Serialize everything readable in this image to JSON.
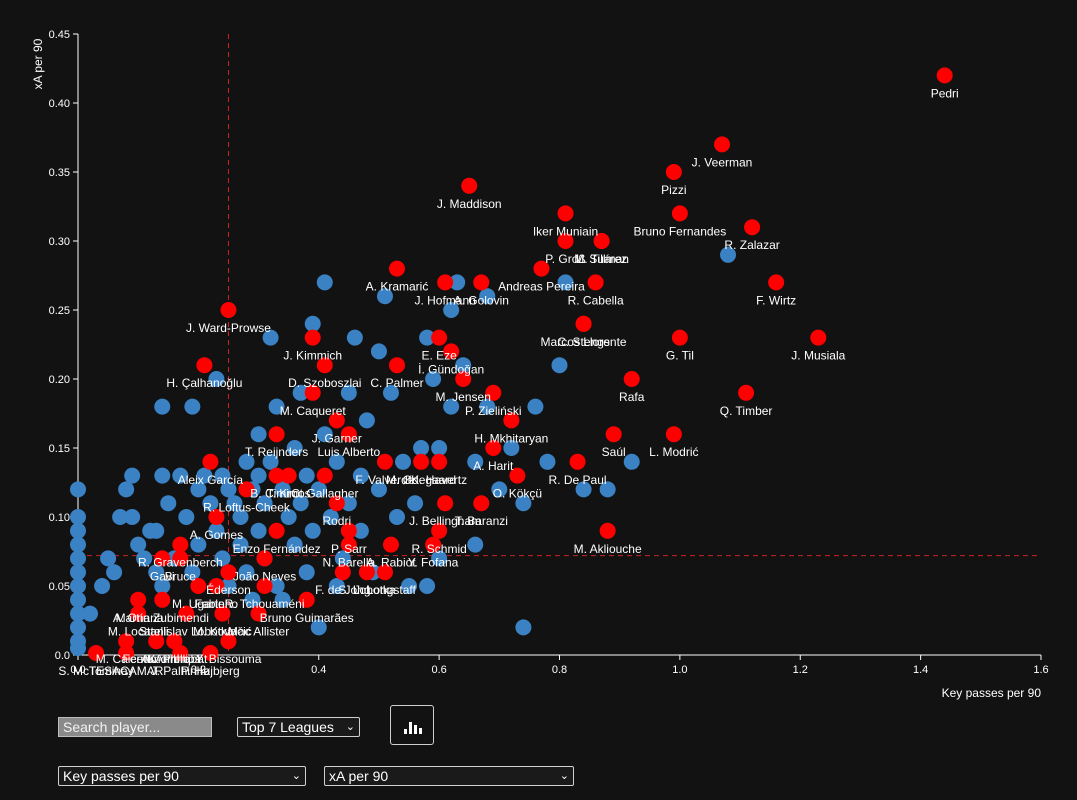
{
  "controls": {
    "search_placeholder": "Search player...",
    "league_selected": "Top 7 Leagues",
    "x_metric_selected": "Key passes per 90",
    "y_metric_selected": "xA per 90",
    "chart_button_icon": "bar-chart-icon"
  },
  "colors": {
    "highlight": "#ff0000",
    "base": "#3a82c4",
    "refline": "#cc2222",
    "background": "#121212"
  },
  "chart_data": {
    "type": "scatter",
    "xlabel": "Key passes per 90",
    "ylabel": "xA per 90",
    "xlim": [
      0,
      1.6
    ],
    "ylim": [
      0,
      0.45
    ],
    "x_ticks": [
      "0.0",
      "0.2",
      "0.4",
      "0.6",
      "0.8",
      "1.0",
      "1.2",
      "1.4",
      "1.6"
    ],
    "y_ticks": [
      "0.0",
      "0.05",
      "0.10",
      "0.15",
      "0.20",
      "0.25",
      "0.30",
      "0.35",
      "0.40",
      "0.45"
    ],
    "reference_lines": {
      "x": 0.25,
      "y": 0.072
    },
    "labeled_points": [
      {
        "name": "Pedri",
        "x": 1.44,
        "y": 0.42,
        "highlight": true
      },
      {
        "name": "J. Veerman",
        "x": 1.07,
        "y": 0.37,
        "highlight": true
      },
      {
        "name": "Pizzi",
        "x": 0.99,
        "y": 0.35,
        "highlight": true
      },
      {
        "name": "J. Maddison",
        "x": 0.65,
        "y": 0.34,
        "highlight": true
      },
      {
        "name": "Bruno Fernandes",
        "x": 1.0,
        "y": 0.32,
        "highlight": true
      },
      {
        "name": "Iker Muniain",
        "x": 0.81,
        "y": 0.32,
        "highlight": true
      },
      {
        "name": "L. Suárez",
        "x": 0.87,
        "y": 0.3,
        "highlight": true
      },
      {
        "name": "R. Zalazar",
        "x": 1.12,
        "y": 0.31,
        "highlight": true
      },
      {
        "name": "P. Groß",
        "x": 0.81,
        "y": 0.3,
        "highlight": true
      },
      {
        "name": "M. Tillman",
        "x": 0.87,
        "y": 0.3,
        "highlight": true
      },
      {
        "name": "A. Kramarić",
        "x": 0.53,
        "y": 0.28,
        "highlight": true
      },
      {
        "name": "Andreas Pereira",
        "x": 0.77,
        "y": 0.28,
        "highlight": true
      },
      {
        "name": "J. Hofmann",
        "x": 0.61,
        "y": 0.27,
        "highlight": true
      },
      {
        "name": "A. Golovin",
        "x": 0.67,
        "y": 0.27,
        "highlight": true
      },
      {
        "name": "R. Cabella",
        "x": 0.86,
        "y": 0.27,
        "highlight": true
      },
      {
        "name": "F. Wirtz",
        "x": 1.16,
        "y": 0.27,
        "highlight": true
      },
      {
        "name": "Marcos Llorente",
        "x": 0.84,
        "y": 0.24,
        "highlight": true
      },
      {
        "name": "J. Ward-Prowse",
        "x": 0.25,
        "y": 0.25,
        "highlight": true
      },
      {
        "name": "C. Stengs",
        "x": 0.84,
        "y": 0.24,
        "highlight": true
      },
      {
        "name": "G. Til",
        "x": 1.0,
        "y": 0.23,
        "highlight": true
      },
      {
        "name": "J. Musiala",
        "x": 1.23,
        "y": 0.23,
        "highlight": true
      },
      {
        "name": "J. Kimmich",
        "x": 0.39,
        "y": 0.23,
        "highlight": true
      },
      {
        "name": "E. Eze",
        "x": 0.6,
        "y": 0.23,
        "highlight": true
      },
      {
        "name": "İ. Gündoğan",
        "x": 0.62,
        "y": 0.22,
        "highlight": true
      },
      {
        "name": "H. Çalhanoğlu",
        "x": 0.21,
        "y": 0.21,
        "highlight": true
      },
      {
        "name": "D. Szoboszlai",
        "x": 0.41,
        "y": 0.21,
        "highlight": true
      },
      {
        "name": "C. Palmer",
        "x": 0.53,
        "y": 0.21,
        "highlight": true
      },
      {
        "name": "Rafa",
        "x": 0.92,
        "y": 0.2,
        "highlight": true
      },
      {
        "name": "M. Caqueret",
        "x": 0.39,
        "y": 0.19,
        "highlight": true
      },
      {
        "name": "M. Jensen",
        "x": 0.64,
        "y": 0.2,
        "highlight": true
      },
      {
        "name": "Q. Timber",
        "x": 1.11,
        "y": 0.19,
        "highlight": true
      },
      {
        "name": "P. Zieliński",
        "x": 0.69,
        "y": 0.19,
        "highlight": true
      },
      {
        "name": "J. Garner",
        "x": 0.43,
        "y": 0.17,
        "highlight": true
      },
      {
        "name": "Luis Alberto",
        "x": 0.45,
        "y": 0.16,
        "highlight": true
      },
      {
        "name": "H. Mkhitaryan",
        "x": 0.72,
        "y": 0.17,
        "highlight": true
      },
      {
        "name": "Saúl",
        "x": 0.89,
        "y": 0.16,
        "highlight": true
      },
      {
        "name": "L. Modrić",
        "x": 0.99,
        "y": 0.16,
        "highlight": true
      },
      {
        "name": "T. Reijnders",
        "x": 0.33,
        "y": 0.16,
        "highlight": true
      },
      {
        "name": "A. Harit",
        "x": 0.69,
        "y": 0.15,
        "highlight": true
      },
      {
        "name": "Aleix García",
        "x": 0.22,
        "y": 0.14,
        "highlight": true
      },
      {
        "name": "F. Valverde",
        "x": 0.51,
        "y": 0.14,
        "highlight": true
      },
      {
        "name": "M. Ødegaard",
        "x": 0.57,
        "y": 0.14,
        "highlight": true
      },
      {
        "name": "K. Havertz",
        "x": 0.6,
        "y": 0.14,
        "highlight": true
      },
      {
        "name": "R. De Paul",
        "x": 0.83,
        "y": 0.14,
        "highlight": true
      },
      {
        "name": "B. Cimirot",
        "x": 0.33,
        "y": 0.13,
        "highlight": true
      },
      {
        "name": "T. Kroos",
        "x": 0.35,
        "y": 0.13,
        "highlight": true
      },
      {
        "name": "C. Gallagher",
        "x": 0.41,
        "y": 0.13,
        "highlight": true
      },
      {
        "name": "O. Kökçü",
        "x": 0.73,
        "y": 0.13,
        "highlight": true
      },
      {
        "name": "R. Loftus-Cheek",
        "x": 0.28,
        "y": 0.12,
        "highlight": true
      },
      {
        "name": "Rodri",
        "x": 0.43,
        "y": 0.11,
        "highlight": true
      },
      {
        "name": "J. Bellingham",
        "x": 0.61,
        "y": 0.11,
        "highlight": true
      },
      {
        "name": "T. Baranzi",
        "x": 0.67,
        "y": 0.11,
        "highlight": true
      },
      {
        "name": "A. Gomes",
        "x": 0.23,
        "y": 0.1,
        "highlight": true
      },
      {
        "name": "Enzo Fernández",
        "x": 0.33,
        "y": 0.09,
        "highlight": true
      },
      {
        "name": "P. Sarr",
        "x": 0.45,
        "y": 0.09,
        "highlight": true
      },
      {
        "name": "R. Schmid",
        "x": 0.6,
        "y": 0.09,
        "highlight": true
      },
      {
        "name": "M. Akliouche",
        "x": 0.88,
        "y": 0.09,
        "highlight": true
      },
      {
        "name": "R. Gravenberch",
        "x": 0.17,
        "y": 0.08,
        "highlight": true
      },
      {
        "name": "N. Barella",
        "x": 0.45,
        "y": 0.08,
        "highlight": true
      },
      {
        "name": "A. Rabiot",
        "x": 0.52,
        "y": 0.08,
        "highlight": true
      },
      {
        "name": "Y. Fofana",
        "x": 0.59,
        "y": 0.08,
        "highlight": true
      },
      {
        "name": "Gavi",
        "x": 0.14,
        "y": 0.07,
        "highlight": true
      },
      {
        "name": "Bruce",
        "x": 0.17,
        "y": 0.07,
        "highlight": true
      },
      {
        "name": "João Neves",
        "x": 0.31,
        "y": 0.07,
        "highlight": true
      },
      {
        "name": "Éderson",
        "x": 0.25,
        "y": 0.06,
        "highlight": true
      },
      {
        "name": "F. de Jong",
        "x": 0.44,
        "y": 0.06,
        "highlight": true
      },
      {
        "name": "S. Lobotka",
        "x": 0.48,
        "y": 0.06,
        "highlight": true
      },
      {
        "name": "J. Longstaff",
        "x": 0.51,
        "y": 0.06,
        "highlight": true
      },
      {
        "name": "M. Ugarte",
        "x": 0.2,
        "y": 0.05,
        "highlight": true
      },
      {
        "name": "Fabinho",
        "x": 0.23,
        "y": 0.05,
        "highlight": true
      },
      {
        "name": "R. Tchouaméni",
        "x": 0.31,
        "y": 0.05,
        "highlight": true
      },
      {
        "name": "Martín Zubimendi",
        "x": 0.14,
        "y": 0.04,
        "highlight": true
      },
      {
        "name": "A. Onana",
        "x": 0.1,
        "y": 0.04,
        "highlight": true
      },
      {
        "name": "Bruno Guimarães",
        "x": 0.38,
        "y": 0.04,
        "highlight": true
      },
      {
        "name": "M. Locatelli",
        "x": 0.1,
        "y": 0.03,
        "highlight": true
      },
      {
        "name": "Stanislav Lobotka",
        "x": 0.18,
        "y": 0.03,
        "highlight": true
      },
      {
        "name": "M. Kovačić",
        "x": 0.24,
        "y": 0.03,
        "highlight": true
      },
      {
        "name": "Mac Allister",
        "x": 0.3,
        "y": 0.03,
        "highlight": true
      },
      {
        "name": "M. Caicedo",
        "x": 0.08,
        "y": 0.01,
        "highlight": true
      },
      {
        "name": "Fernandinho",
        "x": 0.13,
        "y": 0.01,
        "highlight": true
      },
      {
        "name": "K. Phillips",
        "x": 0.16,
        "y": 0.01,
        "highlight": true
      },
      {
        "name": "A. Ambrabat",
        "x": 0.16,
        "y": 0.01,
        "highlight": true
      },
      {
        "name": "Y. Bissouma",
        "x": 0.25,
        "y": 0.01,
        "highlight": true
      },
      {
        "name": "TESACAMAR",
        "x": 0.08,
        "y": 0.0,
        "highlight": true
      },
      {
        "name": "J. Palhinha",
        "x": 0.17,
        "y": 0.0,
        "highlight": true
      },
      {
        "name": "P. Højbjerg",
        "x": 0.22,
        "y": 0.0,
        "highlight": true
      },
      {
        "name": "S. McTominay",
        "x": 0.03,
        "y": -0.01,
        "highlight": true
      }
    ],
    "other_points": [
      [
        0.0,
        0.12
      ],
      [
        0.0,
        0.1
      ],
      [
        0.0,
        0.09
      ],
      [
        0.0,
        0.08
      ],
      [
        0.0,
        0.07
      ],
      [
        0.0,
        0.06
      ],
      [
        0.0,
        0.05
      ],
      [
        0.0,
        0.04
      ],
      [
        0.0,
        0.03
      ],
      [
        0.0,
        0.02
      ],
      [
        0.0,
        0.01
      ],
      [
        0.0,
        0.005
      ],
      [
        0.02,
        0.03
      ],
      [
        0.04,
        0.05
      ],
      [
        0.05,
        0.07
      ],
      [
        0.06,
        0.06
      ],
      [
        0.07,
        0.1
      ],
      [
        0.08,
        0.12
      ],
      [
        0.09,
        0.13
      ],
      [
        0.09,
        0.1
      ],
      [
        0.1,
        0.08
      ],
      [
        0.11,
        0.07
      ],
      [
        0.12,
        0.09
      ],
      [
        0.13,
        0.09
      ],
      [
        0.13,
        0.06
      ],
      [
        0.14,
        0.13
      ],
      [
        0.14,
        0.05
      ],
      [
        0.15,
        0.11
      ],
      [
        0.16,
        0.07
      ],
      [
        0.17,
        0.13
      ],
      [
        0.18,
        0.1
      ],
      [
        0.19,
        0.06
      ],
      [
        0.14,
        0.18
      ],
      [
        0.19,
        0.18
      ],
      [
        0.2,
        0.12
      ],
      [
        0.2,
        0.08
      ],
      [
        0.21,
        0.13
      ],
      [
        0.22,
        0.11
      ],
      [
        0.23,
        0.09
      ],
      [
        0.23,
        0.2
      ],
      [
        0.24,
        0.13
      ],
      [
        0.24,
        0.07
      ],
      [
        0.25,
        0.12
      ],
      [
        0.25,
        0.05
      ],
      [
        0.26,
        0.11
      ],
      [
        0.27,
        0.1
      ],
      [
        0.27,
        0.08
      ],
      [
        0.28,
        0.06
      ],
      [
        0.28,
        0.14
      ],
      [
        0.29,
        0.12
      ],
      [
        0.29,
        0.04
      ],
      [
        0.3,
        0.16
      ],
      [
        0.3,
        0.13
      ],
      [
        0.3,
        0.09
      ],
      [
        0.31,
        0.11
      ],
      [
        0.31,
        0.07
      ],
      [
        0.32,
        0.23
      ],
      [
        0.32,
        0.14
      ],
      [
        0.33,
        0.18
      ],
      [
        0.33,
        0.05
      ],
      [
        0.34,
        0.12
      ],
      [
        0.34,
        0.04
      ],
      [
        0.35,
        0.1
      ],
      [
        0.36,
        0.15
      ],
      [
        0.36,
        0.08
      ],
      [
        0.37,
        0.19
      ],
      [
        0.37,
        0.11
      ],
      [
        0.38,
        0.13
      ],
      [
        0.38,
        0.06
      ],
      [
        0.39,
        0.24
      ],
      [
        0.39,
        0.09
      ],
      [
        0.4,
        0.12
      ],
      [
        0.4,
        0.02
      ],
      [
        0.41,
        0.27
      ],
      [
        0.41,
        0.16
      ],
      [
        0.42,
        0.1
      ],
      [
        0.43,
        0.14
      ],
      [
        0.43,
        0.05
      ],
      [
        0.44,
        0.07
      ],
      [
        0.45,
        0.19
      ],
      [
        0.45,
        0.11
      ],
      [
        0.46,
        0.23
      ],
      [
        0.47,
        0.13
      ],
      [
        0.47,
        0.09
      ],
      [
        0.48,
        0.17
      ],
      [
        0.49,
        0.06
      ],
      [
        0.5,
        0.22
      ],
      [
        0.5,
        0.12
      ],
      [
        0.51,
        0.26
      ],
      [
        0.52,
        0.19
      ],
      [
        0.53,
        0.1
      ],
      [
        0.54,
        0.14
      ],
      [
        0.55,
        0.05
      ],
      [
        0.56,
        0.11
      ],
      [
        0.57,
        0.15
      ],
      [
        0.58,
        0.23
      ],
      [
        0.58,
        0.05
      ],
      [
        0.59,
        0.2
      ],
      [
        0.6,
        0.15
      ],
      [
        0.6,
        0.07
      ],
      [
        0.62,
        0.25
      ],
      [
        0.62,
        0.18
      ],
      [
        0.63,
        0.27
      ],
      [
        0.64,
        0.21
      ],
      [
        0.66,
        0.14
      ],
      [
        0.66,
        0.08
      ],
      [
        0.68,
        0.18
      ],
      [
        0.68,
        0.26
      ],
      [
        0.7,
        0.12
      ],
      [
        0.72,
        0.15
      ],
      [
        0.74,
        0.11
      ],
      [
        0.74,
        0.02
      ],
      [
        0.76,
        0.18
      ],
      [
        0.78,
        0.14
      ],
      [
        0.8,
        0.21
      ],
      [
        0.81,
        0.27
      ],
      [
        0.84,
        0.12
      ],
      [
        0.88,
        0.12
      ],
      [
        0.92,
        0.14
      ],
      [
        1.08,
        0.29
      ]
    ]
  }
}
